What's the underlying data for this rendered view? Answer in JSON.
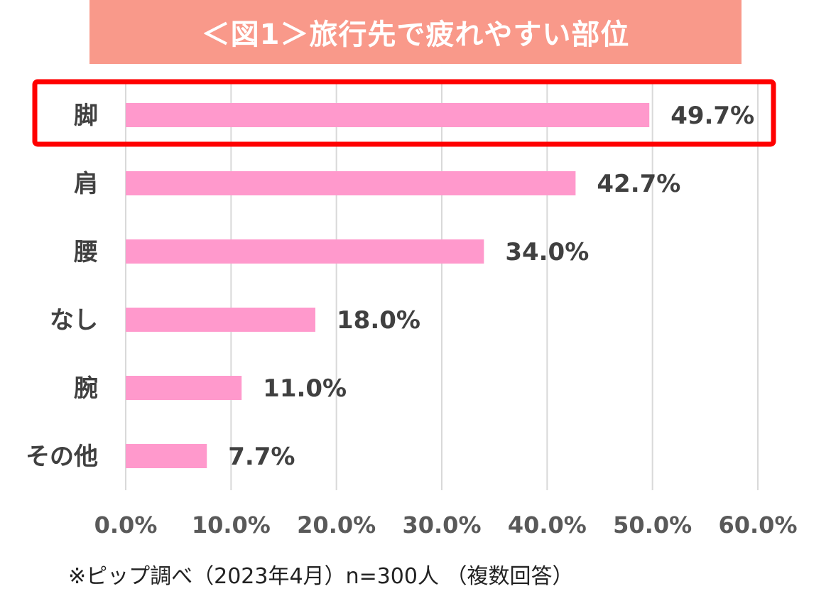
{
  "title": "＜図1＞旅行先で疲れやすい部位",
  "source_note": "※ピップ調べ（2023年4月）n=300人 （複数回答）",
  "colors": {
    "banner": "#f9998a",
    "bar": "#ff99cc",
    "highlight": "#ff0000",
    "grid": "#d9d9d9",
    "label": "#404040",
    "tick": "#595959"
  },
  "chart_data": {
    "type": "bar",
    "orientation": "horizontal",
    "title": "＜図1＞旅行先で疲れやすい部位",
    "categories": [
      "脚",
      "肩",
      "腰",
      "なし",
      "腕",
      "その他"
    ],
    "values": [
      49.7,
      42.7,
      34.0,
      18.0,
      11.0,
      7.7
    ],
    "value_labels": [
      "49.7%",
      "42.7%",
      "34.0%",
      "18.0%",
      "11.0%",
      "7.7%"
    ],
    "xlim": [
      0,
      60
    ],
    "x_ticks": [
      0,
      10,
      20,
      30,
      40,
      50,
      60
    ],
    "x_tick_labels": [
      "0.0%",
      "10.0%",
      "20.0%",
      "30.0%",
      "40.0%",
      "50.0%",
      "60.0%"
    ],
    "grid": true,
    "highlighted_category": "脚"
  }
}
